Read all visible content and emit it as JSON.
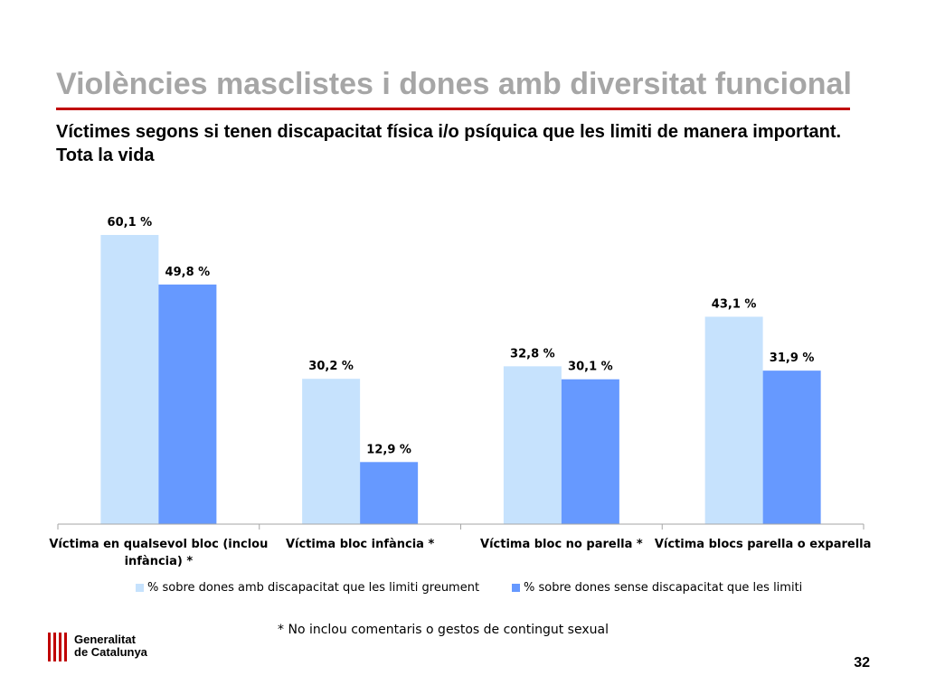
{
  "header": {
    "title": "Violències masclistes i dones amb diversitat funcional",
    "subtitle": "Víctimes segons si tenen discapacitat física i/o psíquica que les limiti de manera important. Tota la vida"
  },
  "chart_data": {
    "type": "bar",
    "categories": [
      "Víctima en qualsevol bloc (inclou infància) *",
      "Víctima bloc infància *",
      "Víctima bloc no parella *",
      "Víctima blocs parella o exparella"
    ],
    "series": [
      {
        "name": "% sobre dones amb discapacitat que les limiti greument",
        "values": [
          60.1,
          30.2,
          32.8,
          43.1
        ],
        "labels": [
          "60,1 %",
          "30,2 %",
          "32,8 %",
          "43,1 %"
        ],
        "color": "#c6e2fd"
      },
      {
        "name": "% sobre dones sense discapacitat que les limiti",
        "values": [
          49.8,
          12.9,
          30.1,
          31.9
        ],
        "labels": [
          "49,8 %",
          "12,9 %",
          "30,1 %",
          "31,9 %"
        ],
        "color": "#6699ff"
      }
    ],
    "ylim": [
      0,
      60.1
    ],
    "legend_position": "bottom",
    "grid": false
  },
  "footnote": "* No inclou comentaris o gestos de contingut sexual",
  "logo": {
    "line1": "Generalitat",
    "line2": "de Catalunya",
    "accent_color": "#c00000"
  },
  "page_number": "32"
}
